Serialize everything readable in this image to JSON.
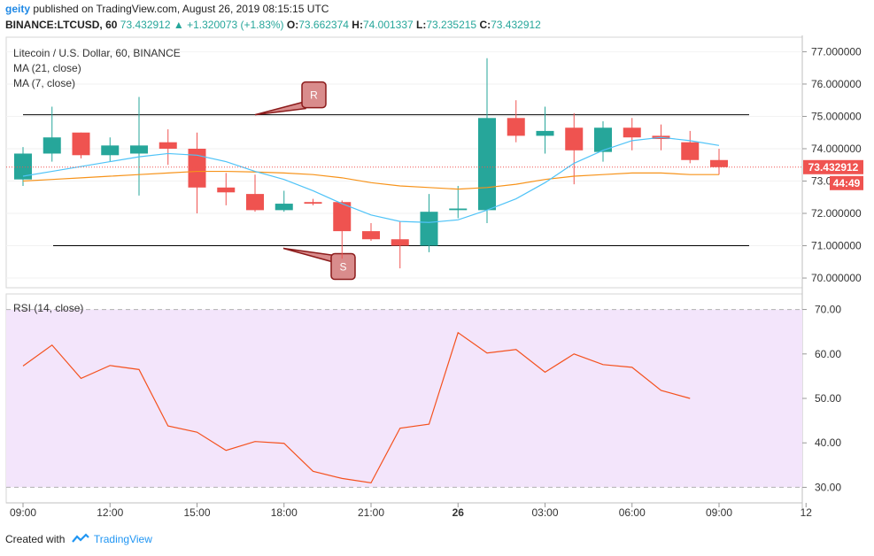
{
  "header": {
    "user": "geity",
    "published": "published on TradingView.com, August 26, 2019 08:15:15 UTC",
    "symbol_line": "BINANCE:LTCUSD, 60",
    "last": "73.432912",
    "change_arrow": "▲",
    "change": "+1.320073 (+1.83%)",
    "o_label": "O:",
    "o": "73.662374",
    "h_label": "H:",
    "h": "74.001337",
    "l_label": "L:",
    "l": "73.235215",
    "c_label": "C:",
    "c": "73.432912"
  },
  "price_pane": {
    "title": "Litecoin / U.S. Dollar, 60, BINANCE",
    "ma21_label": "MA (21, close)",
    "ma7_label": "MA (7, close)"
  },
  "rsi_pane": {
    "title": "RSI (14, close)"
  },
  "footer": {
    "created_with": "Created with",
    "brand": "TradingView"
  },
  "chart_data": [
    {
      "type": "candlestick",
      "x_ticks": [
        "09:00",
        "12:00",
        "15:00",
        "18:00",
        "21:00",
        "26",
        "03:00",
        "06:00",
        "09:00",
        "12"
      ],
      "y_ticks": [
        "77.000000",
        "76.000000",
        "75.000000",
        "74.000000",
        "73.000000",
        "72.000000",
        "71.000000",
        "70.000000"
      ],
      "ylim": [
        69.7,
        77.45
      ],
      "last_price_label": "73.432912",
      "countdown_label": "44:49",
      "colors": {
        "up": "#26a69a",
        "down": "#ef5350",
        "ma21": "#f7931a",
        "ma7": "#4fc3f7",
        "level": "#000000",
        "marker_fill": "#d98c8c",
        "marker_stroke": "#8b1a1a"
      },
      "candles": [
        {
          "o": 73.05,
          "h": 74.05,
          "l": 72.85,
          "c": 73.85
        },
        {
          "o": 73.85,
          "h": 75.3,
          "l": 73.6,
          "c": 74.35
        },
        {
          "o": 74.5,
          "h": 74.5,
          "l": 73.7,
          "c": 73.8
        },
        {
          "o": 73.8,
          "h": 74.35,
          "l": 73.6,
          "c": 74.1
        },
        {
          "o": 73.85,
          "h": 75.6,
          "l": 72.55,
          "c": 74.1
        },
        {
          "o": 74.2,
          "h": 74.6,
          "l": 73.5,
          "c": 74.0
        },
        {
          "o": 74.0,
          "h": 74.5,
          "l": 72.0,
          "c": 72.8
        },
        {
          "o": 72.8,
          "h": 73.25,
          "l": 72.25,
          "c": 72.65
        },
        {
          "o": 72.6,
          "h": 73.2,
          "l": 72.05,
          "c": 72.1
        },
        {
          "o": 72.1,
          "h": 72.7,
          "l": 72.05,
          "c": 72.3
        },
        {
          "o": 72.35,
          "h": 72.45,
          "l": 72.25,
          "c": 72.3
        },
        {
          "o": 72.35,
          "h": 72.4,
          "l": 70.6,
          "c": 71.45
        },
        {
          "o": 71.45,
          "h": 71.7,
          "l": 71.15,
          "c": 71.2
        },
        {
          "o": 71.2,
          "h": 71.75,
          "l": 70.3,
          "c": 71.0
        },
        {
          "o": 71.0,
          "h": 72.6,
          "l": 70.8,
          "c": 72.05
        },
        {
          "o": 72.1,
          "h": 72.85,
          "l": 71.85,
          "c": 72.15
        },
        {
          "o": 72.1,
          "h": 76.8,
          "l": 71.7,
          "c": 74.95
        },
        {
          "o": 74.95,
          "h": 75.5,
          "l": 74.2,
          "c": 74.4
        },
        {
          "o": 74.4,
          "h": 75.3,
          "l": 73.85,
          "c": 74.55
        },
        {
          "o": 74.65,
          "h": 75.1,
          "l": 72.9,
          "c": 73.95
        },
        {
          "o": 73.9,
          "h": 74.85,
          "l": 73.6,
          "c": 74.65
        },
        {
          "o": 74.65,
          "h": 74.95,
          "l": 73.95,
          "c": 74.35
        },
        {
          "o": 74.4,
          "h": 74.75,
          "l": 73.95,
          "c": 74.3
        },
        {
          "o": 74.2,
          "h": 74.55,
          "l": 73.55,
          "c": 73.65
        },
        {
          "o": 73.65,
          "h": 74.0,
          "l": 73.2,
          "c": 73.43
        }
      ],
      "ma7": [
        73.15,
        73.3,
        73.45,
        73.6,
        73.75,
        73.85,
        73.8,
        73.6,
        73.3,
        73.05,
        72.7,
        72.3,
        71.95,
        71.75,
        71.72,
        71.8,
        72.1,
        72.45,
        72.95,
        73.55,
        73.95,
        74.25,
        74.35,
        74.25,
        74.1
      ],
      "ma21": [
        73.0,
        73.05,
        73.1,
        73.15,
        73.2,
        73.25,
        73.3,
        73.3,
        73.28,
        73.25,
        73.2,
        73.1,
        72.95,
        72.85,
        72.8,
        72.75,
        72.8,
        72.9,
        73.05,
        73.15,
        73.2,
        73.25,
        73.25,
        73.2,
        73.2
      ],
      "levels": [
        {
          "label": "R",
          "value": 75.05
        },
        {
          "label": "S",
          "value": 71.0
        }
      ]
    },
    {
      "type": "line",
      "title": "RSI (14, close)",
      "y_ticks": [
        "70.00",
        "60.00",
        "50.00",
        "40.00",
        "30.00"
      ],
      "ylim": [
        26.5,
        73.5
      ],
      "band": [
        30,
        70
      ],
      "colors": {
        "line": "#f4511e",
        "band": "#f3e5fb"
      },
      "values": [
        57.3,
        62.0,
        54.5,
        57.4,
        56.5,
        43.8,
        42.4,
        38.3,
        40.3,
        39.9,
        33.6,
        32.0,
        31.0,
        43.3,
        44.2,
        64.8,
        60.2,
        61.0,
        55.9,
        60.0,
        57.6,
        57.0,
        51.8,
        50.0
      ]
    }
  ]
}
